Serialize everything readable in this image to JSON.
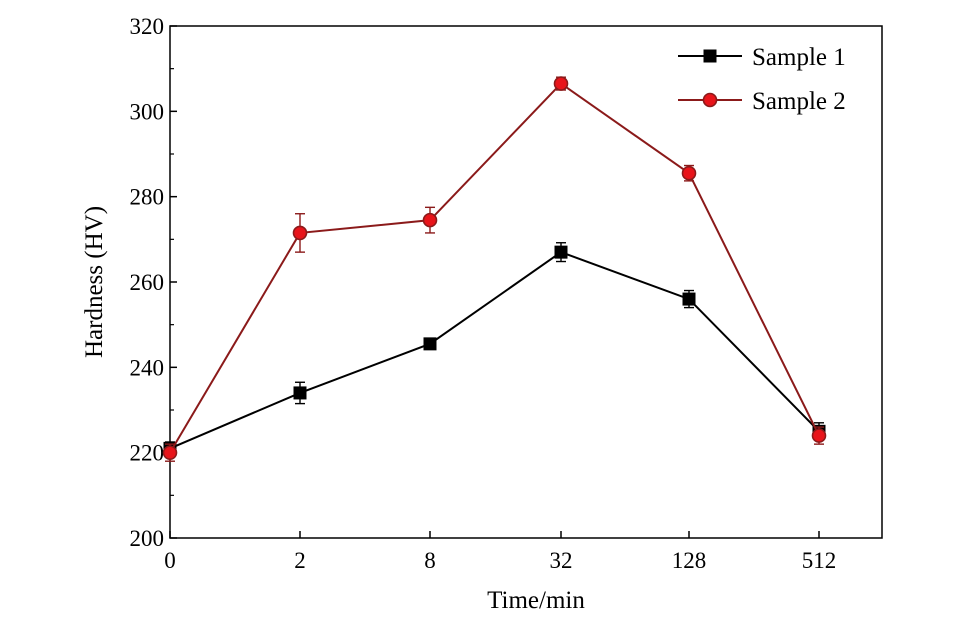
{
  "chart_data": {
    "type": "line",
    "categories": [
      "0",
      "2",
      "8",
      "32",
      "128",
      "512"
    ],
    "xlabel": "Time/min",
    "ylabel": "Hardness (HV)",
    "ylim": [
      200,
      320
    ],
    "yticks": [
      200,
      220,
      240,
      260,
      280,
      300,
      320
    ],
    "legend_position": "top-right",
    "series": [
      {
        "name": "Sample 1",
        "marker": "square",
        "color": "#000000",
        "marker_fill": "#000000",
        "values": [
          221,
          234,
          245.5,
          267,
          256,
          225
        ],
        "errors": [
          1.5,
          2.5,
          1,
          2.2,
          2,
          2
        ]
      },
      {
        "name": "Sample 2",
        "marker": "circle",
        "color": "#8b1a1a",
        "marker_fill": "#e8141a",
        "values": [
          220,
          271.5,
          274.5,
          306.5,
          285.5,
          224
        ],
        "errors": [
          2,
          4.5,
          3,
          1.5,
          1.8,
          2
        ]
      }
    ]
  }
}
